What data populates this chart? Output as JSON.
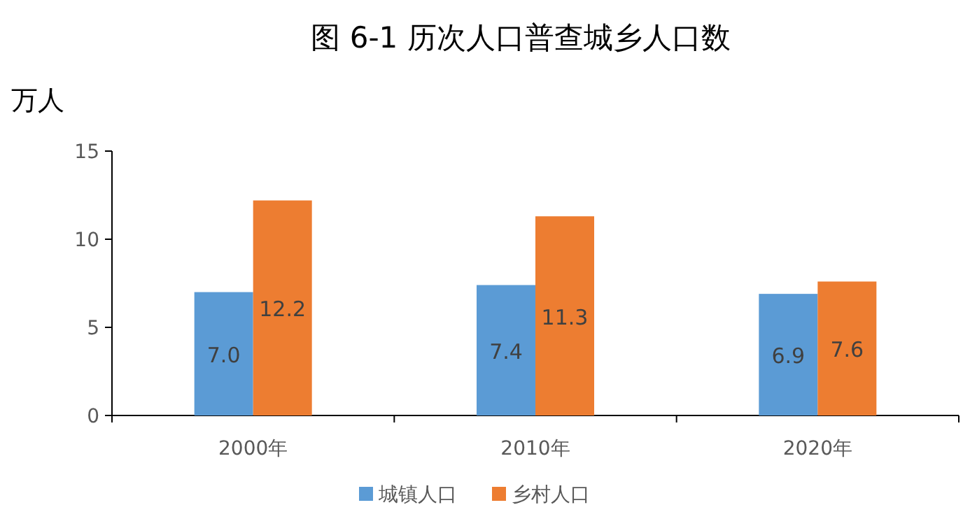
{
  "chart_data": {
    "type": "bar",
    "title": "图 6-1  历次人口普查城乡人口数",
    "ylabel": "万人",
    "categories": [
      "2000年",
      "2010年",
      "2020年"
    ],
    "series": [
      {
        "name": "城镇人口",
        "color": "#5b9bd5",
        "values": [
          7.0,
          7.4,
          6.9
        ],
        "value_labels": [
          "7.0",
          "7.4",
          "6.9"
        ]
      },
      {
        "name": "乡村人口",
        "color": "#ed7d31",
        "values": [
          12.2,
          11.3,
          7.6
        ],
        "value_labels": [
          "12.2",
          "11.3",
          "7.6"
        ]
      }
    ],
    "ylim": [
      0,
      15
    ],
    "yticks": [
      0,
      5,
      10,
      15
    ],
    "grid": false,
    "legend": "bottom"
  }
}
